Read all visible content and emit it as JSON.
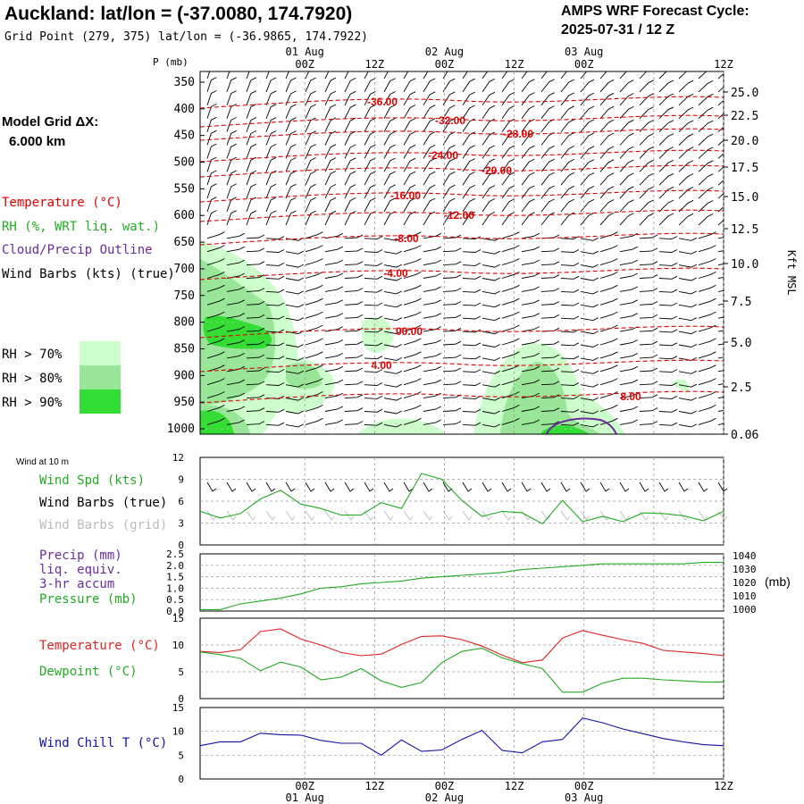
{
  "header": {
    "title": "Auckland:  lat/lon = (-37.0080, 174.7920)",
    "subtitle": "Grid Point (279, 375) lat/lon = (-36.9865, 174.7922)",
    "cycle_label": "AMPS WRF Forecast Cycle:",
    "cycle_value": "2025-07-31 / 12  Z"
  },
  "legend": {
    "model_grid_label": "Model Grid ΔX:",
    "model_grid_value": "6.000 km",
    "temperature": "Temperature (°C)",
    "rh": "RH (%, WRT liq. wat.)",
    "cloud": "Cloud/Precip Outline",
    "wind": "Wind Barbs (kts) (true)",
    "rh70": "RH > 70%",
    "rh80": "RH > 80%",
    "rh90": "RH > 90%",
    "rh70_color": "#ccffcc",
    "rh80_color": "#99e699",
    "rh90_color": "#33dd33"
  },
  "time_axis": {
    "tick_labels": [
      "00Z",
      "12Z",
      "00Z",
      "12Z",
      "00Z",
      "12Z"
    ],
    "date_labels": [
      "01 Aug",
      "02 Aug",
      "03 Aug"
    ]
  },
  "chart_data": [
    {
      "type": "heatmap",
      "name": "cross-section",
      "ylabel_left": "P (mb)",
      "ylabel_right": "Kft MSL",
      "pressure_ticks": [
        350,
        400,
        450,
        500,
        550,
        600,
        650,
        700,
        750,
        800,
        850,
        900,
        950,
        1000
      ],
      "height_ticks": [
        "25.0",
        "22.5",
        "20.0",
        "17.5",
        "15.0",
        "12.5",
        "10.0",
        "7.5",
        "5.0",
        "2.5",
        "0.06"
      ],
      "temperature_contour_labels": [
        "-36.00",
        "-32.00",
        "-28.00",
        "-24.00",
        "-20.00",
        "-16.00",
        "-12.00",
        "-8.00",
        "-4.00",
        "00.00",
        "4.00",
        "8.00"
      ],
      "temperature_contour_levels": [
        -36,
        -32,
        -28,
        -24,
        -20,
        -16,
        -12,
        -8,
        -4,
        0,
        4,
        8
      ],
      "temperature_contour_colors": "#dd0000"
    },
    {
      "type": "line",
      "name": "wind-10m",
      "panel_label": "Wind at 10 m",
      "legend": [
        "Wind Spd (kts)",
        "Wind Barbs (true)",
        "Wind Barbs (grid)"
      ],
      "y_ticks": [
        "12",
        "9",
        "6",
        "3",
        "0"
      ],
      "ylim": [
        0,
        12
      ],
      "x_hours": [
        -12,
        -6,
        -3,
        3,
        6,
        9,
        12,
        15,
        18,
        21,
        24,
        27,
        30,
        33,
        36,
        39,
        42,
        45,
        48,
        51,
        54,
        57,
        60,
        63,
        66,
        69,
        72
      ],
      "series": [
        {
          "name": "Wind Spd (kts)",
          "color": "#22aa22",
          "values": [
            4.6,
            3.7,
            4.3,
            6.3,
            7.5,
            5.6,
            5.0,
            4.1,
            4.1,
            5.8,
            5.0,
            9.8,
            9.0,
            6.1,
            3.9,
            4.6,
            4.4,
            2.9,
            6.1,
            3.2,
            3.9,
            3.2,
            4.4,
            4.3,
            4.0,
            3.3,
            4.6
          ]
        }
      ]
    },
    {
      "type": "line",
      "name": "precip-pressure",
      "legend": [
        "Precip (mm)",
        "liq. equiv.",
        "3-hr accum",
        "Pressure (mb)"
      ],
      "y_ticks_left": [
        "2.5",
        "2.0",
        "1.5",
        "1.0",
        "0.5",
        "0.0"
      ],
      "y_ticks_right": [
        "1040",
        "1030",
        "1020",
        "1010",
        "1000"
      ],
      "ylabel_right": "(mb)",
      "ylim_right": [
        1000,
        1040
      ],
      "x_hours": [
        -12,
        -6,
        -3,
        3,
        6,
        9,
        12,
        15,
        18,
        21,
        24,
        27,
        30,
        33,
        36,
        39,
        42,
        45,
        48,
        51,
        54,
        57,
        60,
        63,
        66,
        69,
        72
      ],
      "series": [
        {
          "name": "Pressure (mb)",
          "color": "#22aa22",
          "values": [
            1001,
            1001,
            1005,
            1007,
            1009,
            1012,
            1016,
            1017,
            1019,
            1020,
            1021,
            1023,
            1024,
            1025,
            1026,
            1027,
            1029,
            1030,
            1031,
            1032,
            1033,
            1033,
            1033,
            1033,
            1033,
            1034,
            1034
          ]
        }
      ]
    },
    {
      "type": "line",
      "name": "temperature-dewpoint",
      "legend": [
        "Temperature (°C)",
        "Dewpoint (°C)"
      ],
      "y_ticks": [
        "15",
        "10",
        "5",
        "0"
      ],
      "ylim": [
        0,
        15
      ],
      "x_hours": [
        -12,
        -6,
        -3,
        3,
        6,
        9,
        12,
        15,
        18,
        21,
        24,
        27,
        30,
        33,
        36,
        39,
        42,
        45,
        48,
        51,
        54,
        57,
        60,
        63,
        66,
        69,
        72
      ],
      "series": [
        {
          "name": "Temperature (°C)",
          "color": "#dd2222",
          "values": [
            8.8,
            8.6,
            9.1,
            12.5,
            13.0,
            11.1,
            10.0,
            8.6,
            8.0,
            8.3,
            10.1,
            11.6,
            11.7,
            11.0,
            9.8,
            8.1,
            6.7,
            7.2,
            11.3,
            12.7,
            11.8,
            11.0,
            10.3,
            9.0,
            8.7,
            8.4,
            8.0
          ]
        },
        {
          "name": "Dewpoint (°C)",
          "color": "#22aa22",
          "values": [
            8.7,
            8.2,
            7.5,
            5.2,
            6.8,
            5.9,
            3.5,
            4.0,
            5.6,
            3.3,
            2.1,
            3.0,
            6.7,
            8.8,
            9.4,
            7.6,
            6.5,
            5.6,
            1.2,
            1.2,
            2.9,
            3.8,
            3.8,
            3.5,
            3.3,
            3.1,
            3.1
          ]
        }
      ]
    },
    {
      "type": "line",
      "name": "wind-chill",
      "legend": [
        "Wind Chill T (°C)"
      ],
      "y_ticks": [
        "15",
        "10",
        "5",
        "0"
      ],
      "ylim": [
        0,
        15
      ],
      "x_hours": [
        -12,
        -6,
        -3,
        3,
        6,
        9,
        12,
        15,
        18,
        21,
        24,
        27,
        30,
        33,
        36,
        39,
        42,
        45,
        48,
        51,
        54,
        57,
        60,
        63,
        66,
        69,
        72
      ],
      "series": [
        {
          "name": "Wind Chill T (°C)",
          "color": "#1111aa",
          "values": [
            7.0,
            7.8,
            7.8,
            9.6,
            9.3,
            9.2,
            8.1,
            7.5,
            7.5,
            5.0,
            8.2,
            5.8,
            6.1,
            8.3,
            10.2,
            6.0,
            5.5,
            7.8,
            8.3,
            12.8,
            11.8,
            10.5,
            9.5,
            8.5,
            7.8,
            7.2,
            7.0
          ]
        }
      ]
    }
  ]
}
